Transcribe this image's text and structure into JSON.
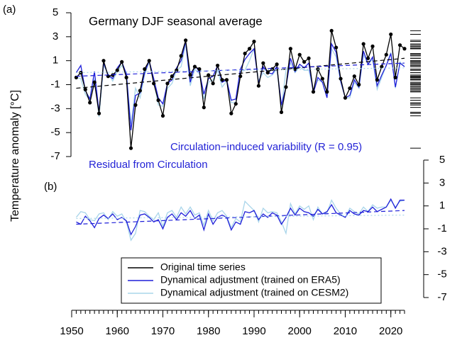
{
  "chart_data": [
    {
      "type": "line",
      "panel_label": "(a)",
      "title": "Germany DJF seasonal average",
      "annotation": "Circulation−induced variability (R = 0.95)",
      "annotation_color": "#2323d6",
      "y_label": "Temperature anomaly [°C]",
      "y_axis_side": "left",
      "rug": true,
      "xlim": [
        1950,
        2023
      ],
      "ylim": [
        -7,
        5
      ],
      "yticks": [
        -7,
        -5,
        -3,
        -1,
        1,
        3,
        5
      ],
      "x": [
        1951,
        1952,
        1953,
        1954,
        1955,
        1956,
        1957,
        1958,
        1959,
        1960,
        1961,
        1962,
        1963,
        1964,
        1965,
        1966,
        1967,
        1968,
        1969,
        1970,
        1971,
        1972,
        1973,
        1974,
        1975,
        1976,
        1977,
        1978,
        1979,
        1980,
        1981,
        1982,
        1983,
        1984,
        1985,
        1986,
        1987,
        1988,
        1989,
        1990,
        1991,
        1992,
        1993,
        1994,
        1995,
        1996,
        1997,
        1998,
        1999,
        2000,
        2001,
        2002,
        2003,
        2004,
        2005,
        2006,
        2007,
        2008,
        2009,
        2010,
        2011,
        2012,
        2013,
        2014,
        2015,
        2016,
        2017,
        2018,
        2019,
        2020,
        2021,
        2022,
        2023
      ],
      "series": [
        {
          "name": "Original time series",
          "color": "#000000",
          "markers": true,
          "values": [
            -0.4,
            0.0,
            -1.4,
            -2.5,
            -0.8,
            -3.4,
            1.0,
            -0.3,
            -0.2,
            0.2,
            0.9,
            -0.4,
            -6.3,
            -2.7,
            -1.5,
            0.3,
            1.0,
            -0.9,
            -2.3,
            -3.6,
            -0.9,
            -0.3,
            0.2,
            1.4,
            2.7,
            -0.2,
            0.5,
            0.3,
            -2.9,
            -0.2,
            -0.9,
            0.6,
            -0.6,
            -0.6,
            -3.4,
            -2.6,
            -0.3,
            1.6,
            2.0,
            2.6,
            -1.1,
            0.8,
            0.0,
            0.3,
            0.7,
            -3.3,
            -1.2,
            2.0,
            0.3,
            1.5,
            0.9,
            1.2,
            -1.6,
            0.3,
            -0.5,
            -1.6,
            3.5,
            2.1,
            -0.5,
            -2.1,
            -1.3,
            -0.3,
            -1.0,
            2.4,
            1.2,
            2.2,
            -0.6,
            0.5,
            1.5,
            3.2,
            -0.4,
            2.3,
            2.0
          ]
        },
        {
          "name": "Dynamical adjustment (trained on ERA5)",
          "color": "#1f1fd9",
          "markers": false,
          "values": [
            0.0,
            0.6,
            -1.5,
            -2.2,
            0.1,
            -3.3,
            0.8,
            -0.2,
            -0.5,
            0.4,
            0.9,
            -0.1,
            -4.8,
            -1.9,
            -1.7,
            0.0,
            1.0,
            -0.5,
            -2.1,
            -2.6,
            -0.9,
            -0.6,
            0.4,
            1.0,
            2.6,
            -0.8,
            0.6,
            0.1,
            -1.8,
            -0.5,
            -0.3,
            0.6,
            -0.8,
            -0.6,
            -2.3,
            -2.2,
            0.3,
            1.1,
            1.6,
            2.0,
            -0.9,
            0.5,
            0.0,
            -0.1,
            0.5,
            -2.7,
            -1.2,
            1.2,
            0.1,
            0.7,
            0.4,
            0.8,
            -1.7,
            -0.4,
            -0.8,
            -2.1,
            2.4,
            1.7,
            -0.7,
            -2.1,
            -1.9,
            -0.6,
            -1.2,
            1.8,
            0.7,
            1.3,
            -1.1,
            -0.2,
            0.6,
            1.6,
            -1.2,
            0.8,
            0.5
          ]
        },
        {
          "name": "Dynamical adjustment (trained on CESM2)",
          "color": "#a9d5ea",
          "markers": false,
          "values": [
            -0.4,
            -0.5,
            -1.8,
            -2.3,
            -0.5,
            -3.7,
            0.6,
            -0.1,
            -0.7,
            0.1,
            0.6,
            0.0,
            -4.3,
            -1.3,
            -2.1,
            -0.2,
            0.9,
            -0.7,
            -2.7,
            -2.8,
            -1.3,
            -0.9,
            0.2,
            0.5,
            2.4,
            -1.1,
            0.3,
            -0.1,
            -2.2,
            -0.8,
            -0.6,
            0.2,
            -1.2,
            -0.7,
            -2.5,
            -2.5,
            0.1,
            0.2,
            1.0,
            2.0,
            -0.7,
            0.0,
            -0.4,
            -0.2,
            0.3,
            -2.9,
            0.2,
            0.8,
            0.0,
            0.5,
            0.2,
            0.2,
            -1.4,
            -0.6,
            -0.8,
            -2.0,
            2.0,
            1.3,
            -0.8,
            -2.1,
            -2.1,
            -0.8,
            -1.3,
            1.5,
            0.7,
            1.1,
            -1.4,
            -0.4,
            0.6,
            1.7,
            -1.3,
            0.9,
            0.5
          ]
        }
      ],
      "trend_lines": [
        {
          "color": "#000000",
          "dash": "6 4",
          "x": [
            1951,
            2023
          ],
          "values": [
            -1.3,
            1.2
          ]
        },
        {
          "color": "#1f1fd9",
          "dash": "6 4",
          "x": [
            1951,
            2023
          ],
          "values": [
            -0.3,
            0.8
          ]
        },
        {
          "color": "#a9d5ea",
          "dash": "2 3",
          "x": [
            1951,
            2023
          ],
          "values": [
            0.0,
            0.4
          ]
        }
      ]
    },
    {
      "type": "line",
      "panel_label": "(b)",
      "annotation": "Residual from Circulation",
      "annotation_color": "#2323d6",
      "y_axis_side": "right",
      "xlim": [
        1950,
        2023
      ],
      "ylim": [
        -7,
        5
      ],
      "yticks": [
        -7,
        -5,
        -3,
        -1,
        1,
        3,
        5
      ],
      "xticks": [
        1950,
        1960,
        1970,
        1980,
        1990,
        2000,
        2010,
        2020
      ],
      "x_minor_ticks": [
        1950,
        1951,
        1952,
        1953,
        1954,
        1955,
        1956,
        1957,
        1958,
        1959,
        1960,
        1961,
        1962,
        1963,
        1964,
        1965,
        1966,
        1967,
        1968,
        1969,
        1970,
        1971,
        1972,
        1973,
        1974,
        1975,
        1976,
        1977,
        1978,
        1979,
        1980,
        1981,
        1982,
        1983,
        1984,
        1985,
        1986,
        1987,
        1988,
        1989,
        1990,
        1991,
        1992,
        1993,
        1994,
        1995,
        1996,
        1997,
        1998,
        1999,
        2000,
        2001,
        2002,
        2003,
        2004,
        2005,
        2006,
        2007,
        2008,
        2009,
        2010,
        2011,
        2012,
        2013,
        2014,
        2015,
        2016,
        2017,
        2018,
        2019,
        2020,
        2021,
        2022,
        2023
      ],
      "x": [
        1951,
        1952,
        1953,
        1954,
        1955,
        1956,
        1957,
        1958,
        1959,
        1960,
        1961,
        1962,
        1963,
        1964,
        1965,
        1966,
        1967,
        1968,
        1969,
        1970,
        1971,
        1972,
        1973,
        1974,
        1975,
        1976,
        1977,
        1978,
        1979,
        1980,
        1981,
        1982,
        1983,
        1984,
        1985,
        1986,
        1987,
        1988,
        1989,
        1990,
        1991,
        1992,
        1993,
        1994,
        1995,
        1996,
        1997,
        1998,
        1999,
        2000,
        2001,
        2002,
        2003,
        2004,
        2005,
        2006,
        2007,
        2008,
        2009,
        2010,
        2011,
        2012,
        2013,
        2014,
        2015,
        2016,
        2017,
        2018,
        2019,
        2020,
        2021,
        2022,
        2023
      ],
      "series": [
        {
          "color": "#1f1fd9",
          "values": [
            -0.4,
            -0.6,
            0.1,
            -0.3,
            -0.9,
            -0.1,
            0.2,
            -0.1,
            0.3,
            -0.2,
            0.0,
            -0.3,
            -1.5,
            -0.8,
            0.2,
            0.3,
            0.0,
            -0.4,
            -0.2,
            -1.0,
            0.0,
            0.3,
            -0.2,
            0.4,
            0.1,
            0.6,
            -0.1,
            0.2,
            -1.1,
            0.3,
            -0.6,
            0.0,
            0.2,
            0.0,
            -1.1,
            -0.4,
            -0.6,
            0.5,
            0.4,
            0.6,
            -0.2,
            0.3,
            0.0,
            0.4,
            0.2,
            -0.6,
            0.0,
            0.8,
            0.2,
            0.8,
            0.5,
            0.4,
            0.1,
            0.7,
            0.3,
            0.5,
            1.1,
            0.4,
            0.2,
            0.0,
            0.6,
            0.3,
            0.2,
            0.6,
            0.5,
            0.9,
            0.5,
            0.7,
            0.9,
            1.6,
            0.8,
            1.5,
            1.5
          ]
        },
        {
          "color": "#a9d5ea",
          "values": [
            0.0,
            0.5,
            0.4,
            -0.2,
            -0.3,
            0.3,
            0.4,
            -0.2,
            0.5,
            0.1,
            0.3,
            -0.4,
            -2.0,
            -1.4,
            0.6,
            0.5,
            0.1,
            -0.2,
            0.4,
            -0.8,
            0.4,
            0.6,
            0.0,
            0.9,
            0.3,
            0.9,
            0.2,
            0.4,
            -0.7,
            0.6,
            -0.3,
            0.4,
            0.6,
            0.1,
            -0.9,
            -0.1,
            -0.4,
            1.4,
            1.0,
            0.6,
            -0.4,
            0.8,
            0.4,
            0.5,
            0.4,
            -0.4,
            -1.4,
            1.2,
            0.3,
            1.0,
            0.7,
            1.0,
            -0.2,
            0.9,
            0.3,
            0.4,
            1.5,
            0.8,
            0.3,
            0.0,
            0.8,
            0.5,
            0.3,
            0.9,
            0.5,
            1.1,
            0.8,
            0.9,
            0.9,
            1.5,
            0.9,
            1.4,
            1.5
          ]
        }
      ],
      "trend_lines": [
        {
          "color": "#1f1fd9",
          "dash": "6 4",
          "x": [
            1951,
            2023
          ],
          "values": [
            -0.6,
            0.6
          ]
        },
        {
          "color": "#a9d5ea",
          "dash": "2 3",
          "x": [
            1951,
            2023
          ],
          "values": [
            -0.1,
            0.2
          ]
        }
      ]
    }
  ]
}
